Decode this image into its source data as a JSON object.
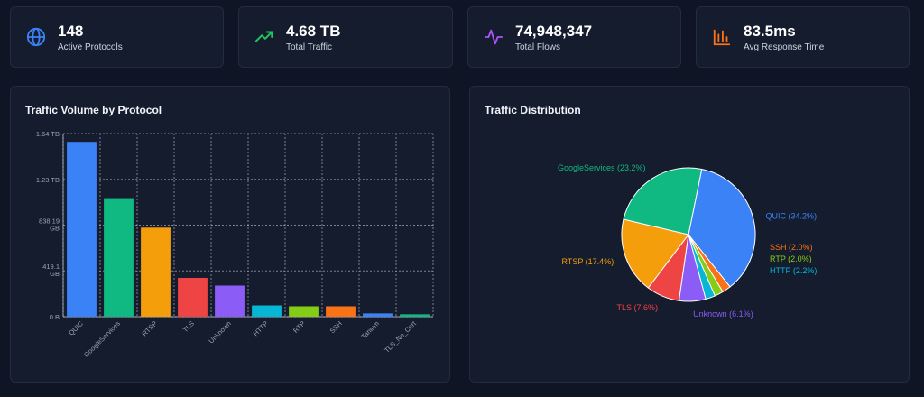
{
  "stats": [
    {
      "value": "148",
      "label": "Active Protocols",
      "icon": "globe-icon",
      "color": "#3b82f6"
    },
    {
      "value": "4.68 TB",
      "label": "Total Traffic",
      "icon": "trending-up-icon",
      "color": "#22c55e"
    },
    {
      "value": "74,948,347",
      "label": "Total Flows",
      "icon": "activity-icon",
      "color": "#a855f7"
    },
    {
      "value": "83.5ms",
      "label": "Avg Response Time",
      "icon": "bar-chart-icon",
      "color": "#f97316"
    }
  ],
  "bar_panel": {
    "title": "Traffic Volume by Protocol"
  },
  "pie_panel": {
    "title": "Traffic Distribution"
  },
  "chart_data": [
    {
      "type": "bar",
      "title": "Traffic Volume by Protocol",
      "categories": [
        "QUIC",
        "GoogleServices",
        "RTSP",
        "TLS",
        "Unknown",
        "HTTP",
        "RTP",
        "SSH",
        "Tanium",
        "TLS_No_Cert"
      ],
      "values": [
        1600,
        1085,
        815,
        355,
        285,
        103,
        95,
        95,
        30,
        22
      ],
      "unit": "GB",
      "colors": [
        "#3b82f6",
        "#10b981",
        "#f59e0b",
        "#ef4444",
        "#8b5cf6",
        "#06b6d4",
        "#84cc16",
        "#f97316",
        "#3b82f6",
        "#10b981"
      ],
      "ylim": [
        0,
        1676
      ],
      "yticks": [
        {
          "value": 0,
          "label": "0 B"
        },
        {
          "value": 419.1,
          "label": "419.1 GB"
        },
        {
          "value": 838.19,
          "label": "838.19 GB"
        },
        {
          "value": 1257,
          "label": "1.23 TB"
        },
        {
          "value": 1676,
          "label": "1.64 TB"
        }
      ],
      "grid": true
    },
    {
      "type": "pie",
      "title": "Traffic Distribution",
      "slices": [
        {
          "label": "QUIC (34.2%)",
          "value": 34.2,
          "color": "#3b82f6"
        },
        {
          "label": "SSH (2.0%)",
          "value": 2.0,
          "color": "#f97316"
        },
        {
          "label": "RTP (2.0%)",
          "value": 2.0,
          "color": "#84cc16"
        },
        {
          "label": "HTTP (2.2%)",
          "value": 2.2,
          "color": "#06b6d4"
        },
        {
          "label": "Unknown (6.1%)",
          "value": 6.1,
          "color": "#8b5cf6"
        },
        {
          "label": "TLS (7.6%)",
          "value": 7.6,
          "color": "#ef4444"
        },
        {
          "label": "RTSP (17.4%)",
          "value": 17.4,
          "color": "#f59e0b"
        },
        {
          "label": "GoogleServices (23.2%)",
          "value": 23.2,
          "color": "#10b981"
        }
      ]
    }
  ]
}
